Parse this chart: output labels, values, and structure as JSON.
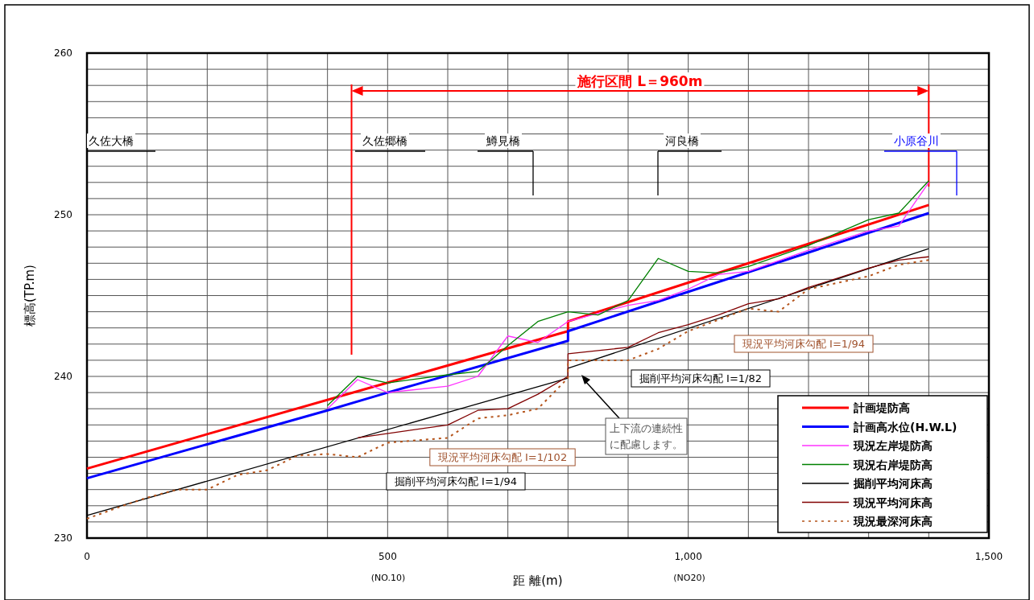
{
  "chart_data": {
    "type": "line",
    "xlabel": "距 離(m)",
    "ylabel": "標高(TP.m)",
    "xlim": [
      0,
      1500
    ],
    "ylim": [
      230,
      260
    ],
    "xticks": [
      0,
      {
        "value": 100,
        "label": null
      },
      {
        "value": 200,
        "label": null
      },
      {
        "value": 300,
        "label": null
      },
      {
        "value": 400,
        "label": null
      },
      500,
      {
        "value": 600,
        "label": null
      },
      {
        "value": 700,
        "label": null
      },
      {
        "value": 800,
        "label": null
      },
      {
        "value": 900,
        "label": null
      },
      {
        "value": 1000,
        "label": "1,000"
      },
      {
        "value": 1100,
        "label": null
      },
      {
        "value": 1200,
        "label": null
      },
      {
        "value": 1300,
        "label": null
      },
      {
        "value": 1400,
        "label": null
      },
      {
        "value": 1500,
        "label": "1,500"
      }
    ],
    "yticks": [
      230,
      {
        "value": 231,
        "label": null
      },
      {
        "value": 232,
        "label": null
      },
      {
        "value": 233,
        "label": null
      },
      {
        "value": 234,
        "label": null
      },
      {
        "value": 235,
        "label": null
      },
      {
        "value": 236,
        "label": null
      },
      {
        "value": 237,
        "label": null
      },
      {
        "value": 238,
        "label": null
      },
      {
        "value": 239,
        "label": null
      },
      240,
      {
        "value": 241,
        "label": null
      },
      {
        "value": 242,
        "label": null
      },
      {
        "value": 243,
        "label": null
      },
      {
        "value": 244,
        "label": null
      },
      {
        "value": 245,
        "label": null
      },
      {
        "value": 246,
        "label": null
      },
      {
        "value": 247,
        "label": null
      },
      {
        "value": 248,
        "label": null
      },
      {
        "value": 249,
        "label": null
      },
      250,
      {
        "value": 251,
        "label": null
      },
      {
        "value": 252,
        "label": null
      },
      {
        "value": 253,
        "label": null
      },
      {
        "value": 254,
        "label": null
      },
      {
        "value": 255,
        "label": null
      },
      {
        "value": 256,
        "label": null
      },
      {
        "value": 257,
        "label": null
      },
      {
        "value": 258,
        "label": null
      },
      {
        "value": 259,
        "label": null
      },
      260
    ],
    "grid": true,
    "legend": "bottom right",
    "marker": "none",
    "line_style": "solid",
    "series": [
      {
        "name": "計画堤防高",
        "color": "#ff0000",
        "x": [
          0,
          800,
          800,
          1400
        ],
        "values": [
          234.3,
          242.8,
          243.4,
          250.6
        ]
      },
      {
        "name": "計画高水位(H.W.L)",
        "color": "#0000ff",
        "x": [
          0,
          400,
          500,
          800,
          800,
          1400
        ],
        "values": [
          233.7,
          237.9,
          239.0,
          242.2,
          242.8,
          250.1
        ]
      },
      {
        "name": "現況左岸堤防高",
        "color": "#ff33ff",
        "x": [
          400,
          450,
          500,
          600,
          650,
          700,
          750,
          800,
          900,
          950,
          1000,
          1050,
          1100,
          1200,
          1300,
          1350,
          1400
        ],
        "values": [
          238.0,
          239.8,
          239.0,
          239.4,
          240.0,
          242.5,
          242.1,
          243.4,
          244.4,
          244.7,
          245.4,
          246.3,
          246.5,
          247.8,
          249.0,
          249.3,
          252.0
        ]
      },
      {
        "name": "現況右岸堤防高",
        "color": "#008000",
        "x": [
          400,
          450,
          500,
          600,
          650,
          700,
          750,
          800,
          850,
          900,
          950,
          1000,
          1050,
          1100,
          1200,
          1300,
          1350,
          1400
        ],
        "values": [
          238.2,
          240.0,
          239.6,
          240.1,
          240.3,
          241.9,
          243.4,
          244.0,
          243.8,
          244.7,
          247.3,
          246.5,
          246.4,
          246.8,
          248.1,
          249.7,
          250.1,
          252.1
        ]
      },
      {
        "name": "掘削平均河床高",
        "color": "#000000",
        "x": [
          0,
          800,
          800,
          1400
        ],
        "values": [
          231.4,
          239.9,
          240.5,
          247.9
        ]
      },
      {
        "name": "現況平均河床高",
        "color": "#800000",
        "x": [
          450,
          600,
          650,
          700,
          750,
          800,
          800,
          850,
          900,
          950,
          1000,
          1050,
          1100,
          1150,
          1200,
          1300,
          1350,
          1400
        ],
        "values": [
          236.2,
          237.0,
          237.9,
          238.0,
          238.9,
          240.0,
          241.4,
          241.6,
          241.8,
          242.7,
          243.2,
          243.8,
          244.5,
          244.8,
          245.5,
          246.7,
          247.2,
          247.4
        ]
      },
      {
        "name": "現況最深河床高",
        "color": "#b5541b",
        "line_style": "dotted",
        "x": [
          0,
          60,
          100,
          150,
          200,
          250,
          300,
          350,
          400,
          450,
          500,
          600,
          650,
          700,
          750,
          800,
          800,
          850,
          900,
          950,
          1000,
          1050,
          1100,
          1150,
          1200,
          1300,
          1350,
          1400
        ],
        "values": [
          231.2,
          232.0,
          232.5,
          233.0,
          233.0,
          233.9,
          234.2,
          235.1,
          235.2,
          235.0,
          235.9,
          236.2,
          237.4,
          237.6,
          238.0,
          239.9,
          241.0,
          241.0,
          241.0,
          241.7,
          242.8,
          243.5,
          244.2,
          244.0,
          245.4,
          246.2,
          246.9,
          247.2
        ]
      }
    ],
    "ref_lines": [
      {
        "axis": "x",
        "value": 440,
        "label": "施行区間 L＝960m",
        "color": "#ff0000"
      },
      {
        "axis": "x",
        "value": 1400,
        "color": "#ff0000"
      }
    ],
    "annotations": [
      "久佐大橋",
      "久佐郷橋",
      "鱒見橋",
      "河良橋",
      "小原谷川",
      "現況平均河床勾配 I=1/94",
      "掘削平均河床勾配 I=1/82",
      "現況平均河床勾配 I=1/102",
      "掘削平均河床勾配 I=1/94",
      "上下流の連続性に配慮します。",
      "(NO.10)",
      "(NO20)"
    ]
  }
}
